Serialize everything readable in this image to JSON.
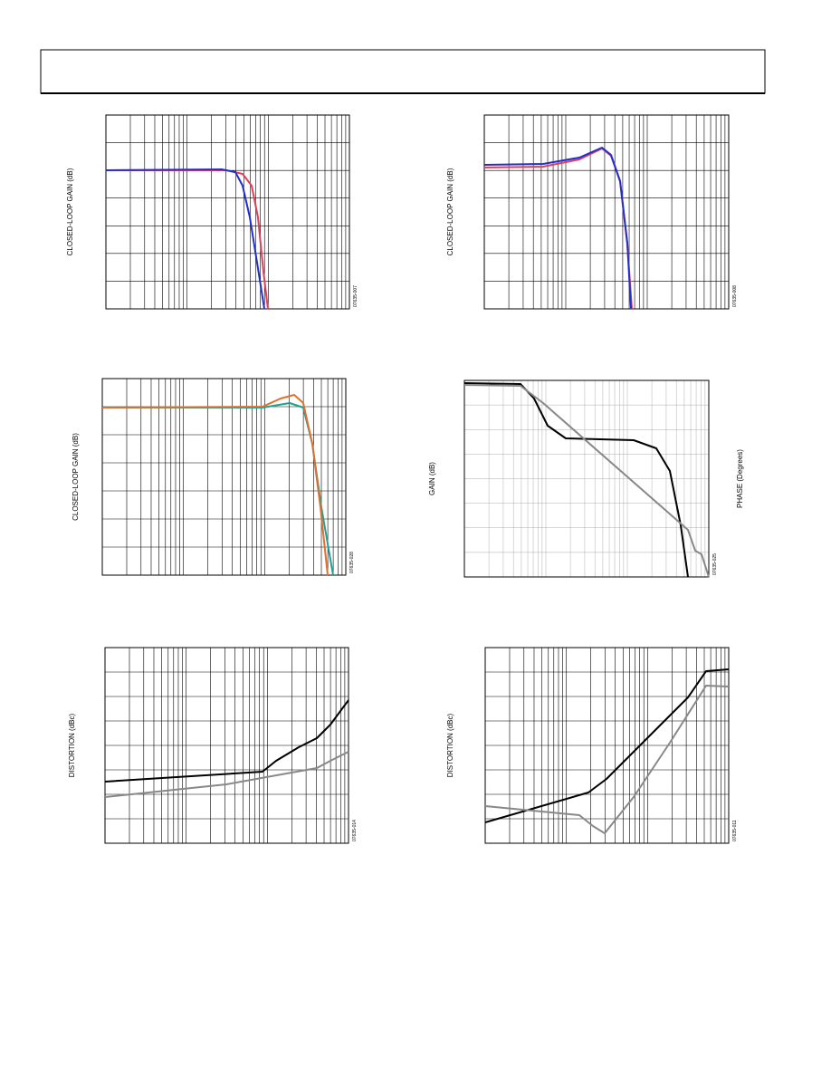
{
  "figures": [
    {
      "ylabel": "CLOSED-LOOP GAIN (dB)",
      "id": "07635-007"
    },
    {
      "ylabel": "CLOSED-LOOP GAIN (dB)",
      "id": "07635-008"
    },
    {
      "ylabel": "CLOSED-LOOP GAIN (dB)",
      "id": "07635-028"
    },
    {
      "ylabel": "GAIN (dB)",
      "y2label": "PHASE (Degrees)",
      "id": "07635-025"
    },
    {
      "ylabel": "DISTORTION (dBc)",
      "id": "07635-014"
    },
    {
      "ylabel": "DISTORTION (dBc)",
      "id": "07635-011"
    }
  ]
}
